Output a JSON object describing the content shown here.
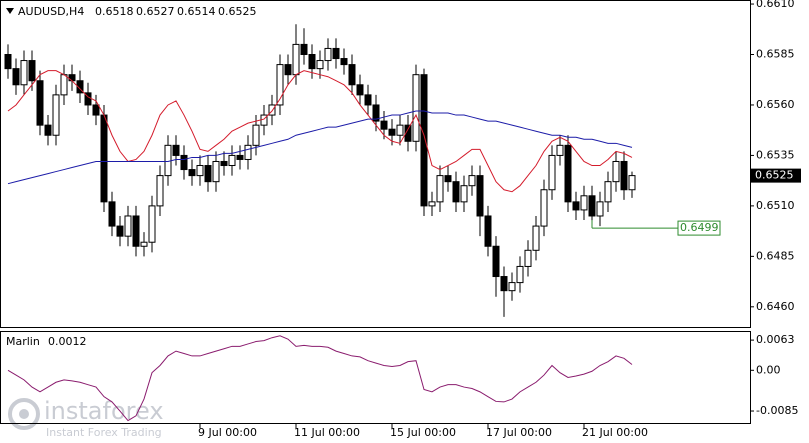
{
  "chart_data": {
    "type": "candlestick",
    "symbol": "AUDUSD,H4",
    "open": [
      0.6585,
      0.6578,
      0.657,
      0.6582,
      0.6572,
      0.655,
      0.6545,
      0.6565,
      0.6575,
      0.6572,
      0.6566,
      0.656,
      0.6555,
      0.6512,
      0.65,
      0.6495,
      0.6505,
      0.649,
      0.6492,
      0.651,
      0.6525,
      0.654,
      0.6535,
      0.6528,
      0.6525,
      0.653,
      0.6522,
      0.6532,
      0.653,
      0.6535,
      0.6533,
      0.654,
      0.655,
      0.6555,
      0.656,
      0.658,
      0.6575,
      0.659,
      0.6585,
      0.6578,
      0.6582,
      0.6588,
      0.6583,
      0.658,
      0.657,
      0.6565,
      0.656,
      0.6552,
      0.6548,
      0.6545,
      0.655,
      0.6542,
      0.6575,
      0.651,
      0.6512,
      0.6525,
      0.6522,
      0.6512,
      0.652,
      0.6525,
      0.6505,
      0.649,
      0.6475,
      0.6468,
      0.6472,
      0.648,
      0.6488,
      0.65,
      0.6518,
      0.6535,
      0.654,
      0.6512,
      0.6508,
      0.6515,
      0.6505,
      0.6512,
      0.6522,
      0.6532,
      0.6518
    ],
    "high": [
      0.659,
      0.6583,
      0.6587,
      0.6587,
      0.6577,
      0.6555,
      0.657,
      0.658,
      0.658,
      0.6577,
      0.6571,
      0.6565,
      0.656,
      0.6517,
      0.6505,
      0.651,
      0.651,
      0.6497,
      0.6515,
      0.653,
      0.6545,
      0.6545,
      0.654,
      0.6533,
      0.6535,
      0.6535,
      0.6537,
      0.6537,
      0.654,
      0.654,
      0.6545,
      0.6555,
      0.656,
      0.6565,
      0.6585,
      0.6585,
      0.66,
      0.6598,
      0.659,
      0.6587,
      0.6593,
      0.6593,
      0.6588,
      0.6585,
      0.6575,
      0.657,
      0.6565,
      0.6557,
      0.6553,
      0.6555,
      0.6555,
      0.658,
      0.6578,
      0.6517,
      0.653,
      0.653,
      0.6527,
      0.6525,
      0.653,
      0.653,
      0.651,
      0.6495,
      0.648,
      0.6477,
      0.6485,
      0.6493,
      0.6505,
      0.6523,
      0.654,
      0.6545,
      0.6545,
      0.6517,
      0.652,
      0.652,
      0.6517,
      0.6527,
      0.6537,
      0.6537,
      0.6527
    ],
    "low": [
      0.6573,
      0.6565,
      0.6565,
      0.6567,
      0.6545,
      0.654,
      0.654,
      0.656,
      0.6567,
      0.6561,
      0.6555,
      0.655,
      0.6507,
      0.6495,
      0.649,
      0.649,
      0.6485,
      0.6485,
      0.6487,
      0.6505,
      0.652,
      0.653,
      0.6523,
      0.652,
      0.652,
      0.6517,
      0.6517,
      0.6525,
      0.6525,
      0.6528,
      0.6528,
      0.6535,
      0.6545,
      0.655,
      0.6555,
      0.657,
      0.657,
      0.658,
      0.6573,
      0.6573,
      0.6577,
      0.6578,
      0.6575,
      0.6565,
      0.656,
      0.6555,
      0.6547,
      0.6543,
      0.654,
      0.654,
      0.6537,
      0.6537,
      0.6505,
      0.6505,
      0.6507,
      0.6517,
      0.6507,
      0.6507,
      0.6515,
      0.6495,
      0.6485,
      0.6465,
      0.6455,
      0.6463,
      0.6467,
      0.6475,
      0.6483,
      0.6495,
      0.6513,
      0.653,
      0.6507,
      0.6503,
      0.6503,
      0.65,
      0.65,
      0.6507,
      0.6517,
      0.6513,
      0.6514
    ],
    "close": [
      0.6578,
      0.657,
      0.6582,
      0.6572,
      0.655,
      0.6545,
      0.6565,
      0.6575,
      0.6572,
      0.6566,
      0.656,
      0.6555,
      0.6512,
      0.65,
      0.6495,
      0.6505,
      0.649,
      0.6492,
      0.651,
      0.6525,
      0.654,
      0.6535,
      0.6528,
      0.6525,
      0.653,
      0.6522,
      0.6532,
      0.653,
      0.6535,
      0.6533,
      0.654,
      0.655,
      0.6555,
      0.656,
      0.658,
      0.6575,
      0.659,
      0.6585,
      0.6578,
      0.6582,
      0.6588,
      0.6583,
      0.658,
      0.657,
      0.6565,
      0.656,
      0.6552,
      0.6548,
      0.6545,
      0.655,
      0.6542,
      0.6575,
      0.651,
      0.6512,
      0.6525,
      0.6522,
      0.6512,
      0.652,
      0.6525,
      0.6505,
      0.649,
      0.6475,
      0.6468,
      0.6472,
      0.648,
      0.6488,
      0.65,
      0.6518,
      0.6535,
      0.654,
      0.6512,
      0.6508,
      0.6515,
      0.6505,
      0.6512,
      0.6522,
      0.6532,
      0.6518,
      0.6525
    ],
    "overlays": [
      {
        "color": "#d41c2c",
        "values": [
          0.6557,
          0.656,
          0.6565,
          0.657,
          0.6575,
          0.6577,
          0.6577,
          0.6575,
          0.6572,
          0.6568,
          0.6564,
          0.6562,
          0.6555,
          0.6545,
          0.6537,
          0.6532,
          0.6533,
          0.6537,
          0.6545,
          0.6555,
          0.656,
          0.6562,
          0.6555,
          0.6547,
          0.6538,
          0.6537,
          0.654,
          0.6543,
          0.6547,
          0.6549,
          0.6551,
          0.6552,
          0.6553,
          0.6557,
          0.6563,
          0.657,
          0.6575,
          0.6577,
          0.6576,
          0.6575,
          0.6574,
          0.6572,
          0.657,
          0.6566,
          0.656,
          0.6555,
          0.655,
          0.6545,
          0.6542,
          0.6541,
          0.6548,
          0.6555,
          0.6545,
          0.653,
          0.6528,
          0.653,
          0.6532,
          0.6535,
          0.6538,
          0.6538,
          0.653,
          0.6522,
          0.6518,
          0.6517,
          0.652,
          0.6525,
          0.653,
          0.6537,
          0.6542,
          0.6544,
          0.6542,
          0.6537,
          0.6532,
          0.653,
          0.653,
          0.6533,
          0.6537,
          0.6536,
          0.6534
        ]
      },
      {
        "color": "#1c1ca8",
        "values": [
          0.6521,
          0.6522,
          0.6523,
          0.6524,
          0.6525,
          0.6526,
          0.6527,
          0.6528,
          0.6529,
          0.653,
          0.6531,
          0.6532,
          0.6532,
          0.6532,
          0.6532,
          0.6532,
          0.6532,
          0.6532,
          0.6532,
          0.6532,
          0.6532,
          0.6533,
          0.6533,
          0.6534,
          0.6534,
          0.6535,
          0.6535,
          0.6536,
          0.6536,
          0.6537,
          0.6538,
          0.6539,
          0.654,
          0.6541,
          0.6542,
          0.6543,
          0.6545,
          0.6546,
          0.6547,
          0.6548,
          0.6549,
          0.6549,
          0.655,
          0.6551,
          0.6552,
          0.6553,
          0.6553,
          0.6554,
          0.6555,
          0.6555,
          0.6556,
          0.6557,
          0.6557,
          0.6556,
          0.6556,
          0.6556,
          0.6555,
          0.6555,
          0.6554,
          0.6553,
          0.6552,
          0.6552,
          0.6551,
          0.655,
          0.6549,
          0.6548,
          0.6547,
          0.6546,
          0.6545,
          0.6545,
          0.6544,
          0.6544,
          0.6543,
          0.6543,
          0.6542,
          0.6541,
          0.6541,
          0.654,
          0.6539
        ]
      }
    ],
    "ylim": [
      0.645,
      0.6612
    ],
    "yticks": [
      {
        "value": 0.661,
        "label": "0.6610"
      },
      0.6585,
      {
        "value": 0.656,
        "label": "0.6560"
      },
      0.6535,
      {
        "value": 0.651,
        "label": "0.6510"
      },
      0.6485,
      {
        "value": 0.646,
        "label": "0.6460"
      }
    ],
    "xticks": [
      {
        "value": 24,
        "label": "9 Jul 00:00"
      },
      {
        "value": 36,
        "label": "11 Jul 00:00"
      },
      {
        "value": 48,
        "label": "15 Jul 00:00"
      },
      {
        "value": 60,
        "label": "17 Jul 00:00"
      },
      {
        "value": 72,
        "label": "21 Jul 00:00"
      }
    ],
    "hline": {
      "value": 0.6499,
      "start": 73,
      "color": "#2e8b2e"
    },
    "indicator": {
      "name": "Marlin",
      "color": "#8a1c6e",
      "values": [
        0.0,
        -0.001,
        -0.002,
        -0.0035,
        -0.0045,
        -0.0035,
        -0.0025,
        -0.002,
        -0.0022,
        -0.0025,
        -0.003,
        -0.0035,
        -0.0055,
        -0.0066,
        -0.0085,
        -0.0105,
        -0.0095,
        -0.006,
        -0.0005,
        0.001,
        0.003,
        0.004,
        0.0035,
        0.003,
        0.003,
        0.0035,
        0.004,
        0.0045,
        0.005,
        0.005,
        0.0055,
        0.006,
        0.0062,
        0.0068,
        0.0072,
        0.0065,
        0.005,
        0.0052,
        0.005,
        0.005,
        0.0048,
        0.004,
        0.0035,
        0.003,
        0.0028,
        0.002,
        0.0015,
        0.001,
        0.0008,
        0.001,
        0.0018,
        0.002,
        -0.004,
        -0.0045,
        -0.0035,
        -0.003,
        -0.003,
        -0.0035,
        -0.0038,
        -0.0045,
        -0.0055,
        -0.0065,
        -0.0066,
        -0.006,
        -0.0045,
        -0.0035,
        -0.0025,
        -0.001,
        0.001,
        -0.0005,
        -0.0015,
        -0.0012,
        -0.0008,
        -0.0002,
        0.001,
        0.0018,
        0.003,
        0.0025,
        0.0012
      ],
      "ylim": [
        -0.011,
        0.0082
      ],
      "yticks": [
        0.0063,
        {
          "value": 0,
          "label": "0.00"
        },
        -0.0085
      ]
    },
    "watermark": {
      "brand": "instaforex",
      "tagline": "Instant Forex Trading"
    }
  }
}
